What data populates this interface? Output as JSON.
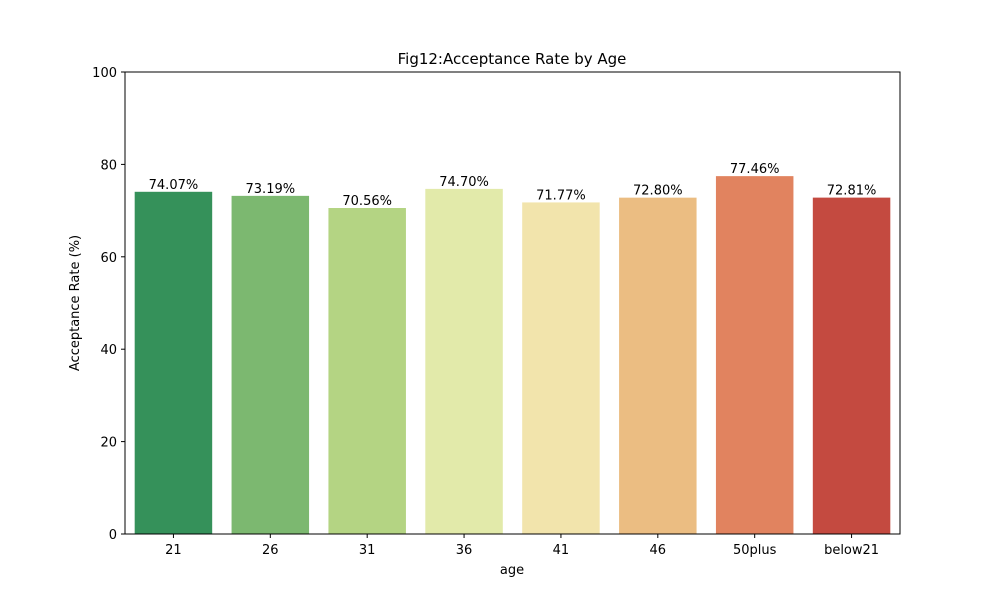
{
  "chart_data": {
    "type": "bar",
    "title": "Fig12:Acceptance Rate by Age",
    "xlabel": "age",
    "ylabel": "Acceptance Rate (%)",
    "ylim": [
      0,
      100
    ],
    "yticks": [
      0,
      20,
      40,
      60,
      80,
      100
    ],
    "grid": false,
    "categories": [
      "21",
      "26",
      "31",
      "36",
      "41",
      "46",
      "50plus",
      "below21"
    ],
    "values": [
      74.07,
      73.19,
      70.56,
      74.7,
      71.77,
      72.8,
      77.46,
      72.81
    ],
    "data_labels": [
      "74.07%",
      "73.19%",
      "70.56%",
      "74.70%",
      "71.77%",
      "72.80%",
      "77.46%",
      "72.81%"
    ],
    "colors": [
      "#35915a",
      "#7cb870",
      "#b4d483",
      "#e2eaaa",
      "#f2e4ac",
      "#ebbd82",
      "#e1835f",
      "#c44a40"
    ]
  }
}
